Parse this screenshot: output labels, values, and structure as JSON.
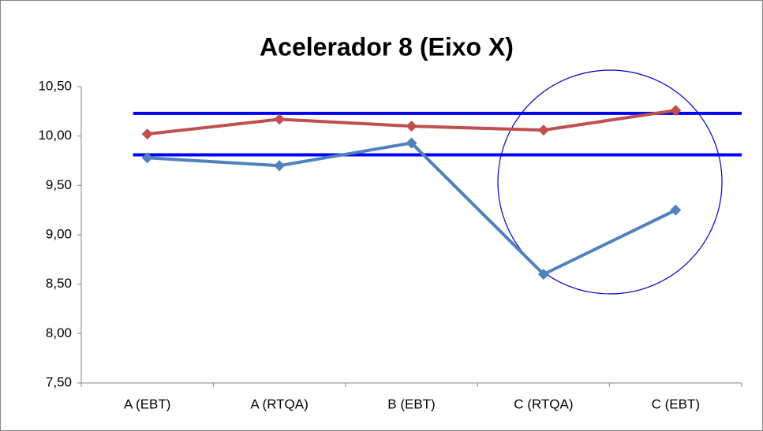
{
  "chart_data": {
    "type": "line",
    "title": "Acelerador 8 (Eixo X)",
    "categories": [
      "A (EBT)",
      "A (RTQA)",
      "B (EBT)",
      "C (RTQA)",
      "C (EBT)"
    ],
    "series": [
      {
        "color": "#c0504d",
        "values": [
          10.02,
          10.17,
          10.1,
          10.06,
          10.26
        ]
      },
      {
        "color": "#4f81bd",
        "values": [
          9.78,
          9.7,
          9.93,
          8.6,
          9.25
        ]
      }
    ],
    "reference_lines": [
      {
        "value": 10.23,
        "color": "#0000ff"
      },
      {
        "value": 9.81,
        "color": "#0000ff"
      }
    ],
    "ylim": [
      7.5,
      10.5
    ],
    "yticks": [
      {
        "value": 7.5,
        "label": "7,50"
      },
      {
        "value": 8,
        "label": "8,00"
      },
      {
        "value": 8.5,
        "label": "8,50"
      },
      {
        "value": 9,
        "label": "9,00"
      },
      {
        "value": 9.5,
        "label": "9,50"
      },
      {
        "value": 10,
        "label": "10,00"
      },
      {
        "value": 10.5,
        "label": "10,50"
      }
    ],
    "grid": false
  }
}
